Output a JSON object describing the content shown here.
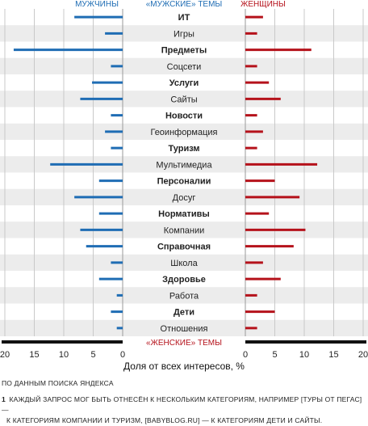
{
  "chart_data": {
    "type": "bar",
    "layout": "diverging-butterfly",
    "left_header": "МУЖЧИНЫ",
    "right_header": "ЖЕНЩИНЫ",
    "center_header_top": "«МУЖСКИЕ» ТЕМЫ",
    "center_header_bottom": "«ЖЕНСКИЕ» ТЕМЫ",
    "xlabel": "Доля от всех интересов, %",
    "xlim": [
      0,
      20
    ],
    "ticks": [
      20,
      15,
      10,
      5,
      0
    ],
    "right_ticks": [
      0,
      5,
      10,
      15,
      20
    ],
    "grid": true,
    "categories": [
      "ИТ",
      "Игры",
      "Предметы",
      "Соцсети",
      "Услуги",
      "Сайты",
      "Новости",
      "Геоинформация",
      "Туризм",
      "Мультимедиа",
      "Персоналии",
      "Досуг",
      "Нормативы",
      "Компании",
      "Справочная",
      "Школа",
      "Здоровье",
      "Работа",
      "Дети",
      "Отношения"
    ],
    "bold_categories": [
      true,
      false,
      true,
      false,
      true,
      false,
      true,
      false,
      true,
      false,
      true,
      false,
      true,
      false,
      true,
      false,
      true,
      false,
      true,
      false
    ],
    "series": [
      {
        "name": "МУЖЧИНЫ",
        "side": "left",
        "color": "#1f6db4",
        "values": [
          8.2,
          3.0,
          18.5,
          2.0,
          5.2,
          7.2,
          2.0,
          3.0,
          2.0,
          12.3,
          4.0,
          8.2,
          4.0,
          7.2,
          6.2,
          2.0,
          4.0,
          1.0,
          2.0,
          1.0
        ]
      },
      {
        "name": "ЖЕНЩИНЫ",
        "side": "right",
        "color": "#b5121b",
        "values": [
          3.0,
          2.0,
          11.2,
          2.0,
          4.0,
          6.0,
          2.0,
          3.0,
          2.0,
          12.2,
          5.0,
          9.2,
          4.0,
          10.2,
          8.2,
          3.0,
          6.0,
          2.0,
          5.0,
          2.0
        ]
      }
    ]
  },
  "source_note": "ПО ДАННЫМ ПОИСКА ЯНДЕКСА",
  "footnote": {
    "number": "1",
    "line1": "КАЖДЫЙ ЗАПРОС МОГ БЫТЬ ОТНЕСЁН К НЕСКОЛЬКИМ КАТЕГОРИЯМ, НАПРИМЕР [ТУРЫ ОТ ПЕГАС] —",
    "line2": "К КАТЕГОРИЯМ КОМПАНИИ И ТУРИЗМ, [BABYBLOG.RU] — К КАТЕГОРИЯМ ДЕТИ И САЙТЫ."
  }
}
